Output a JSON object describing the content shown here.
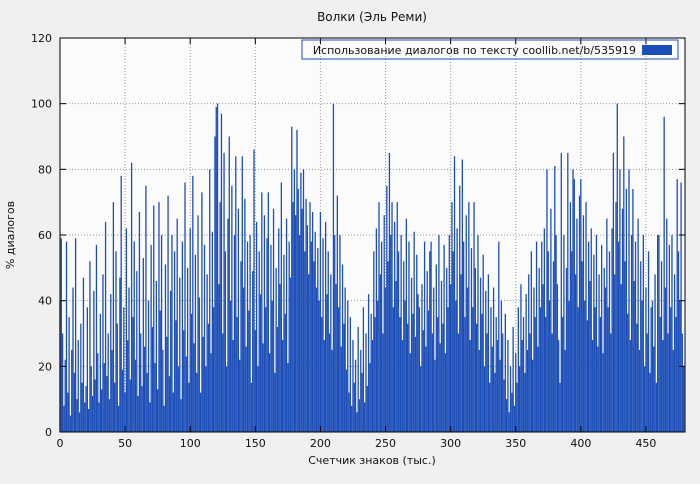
{
  "chart_data": {
    "type": "bar",
    "title": "Волки (Эль Реми)",
    "xlabel": "Счетчик знаков (тыс.)",
    "ylabel": "% диалогов",
    "legend_label": "Использование диалогов по тексту  coollib.net/b/535919",
    "xlim": [
      0,
      480
    ],
    "ylim": [
      0,
      120
    ],
    "x_ticks": [
      0,
      50,
      100,
      150,
      200,
      250,
      300,
      350,
      400,
      450
    ],
    "y_ticks": [
      0,
      20,
      40,
      60,
      80,
      100,
      120
    ],
    "grid": true,
    "legend_position": "top-right",
    "colors": {
      "bar": "#1c4eb8",
      "legend_border": "#1c4eb8"
    },
    "x_start": 0,
    "x_step": 1,
    "values": [
      40,
      59,
      30,
      8,
      22,
      58,
      12,
      35,
      5,
      25,
      44,
      18,
      59,
      10,
      28,
      6,
      33,
      15,
      47,
      9,
      14,
      38,
      7,
      52,
      20,
      11,
      43,
      16,
      57,
      24,
      9,
      36,
      13,
      48,
      21,
      64,
      17,
      30,
      10,
      42,
      25,
      70,
      15,
      55,
      33,
      8,
      47,
      78,
      19,
      38,
      12,
      62,
      28,
      44,
      16,
      82,
      35,
      58,
      22,
      49,
      11,
      67,
      30,
      14,
      53,
      26,
      75,
      18,
      40,
      9,
      57,
      32,
      69,
      21,
      46,
      13,
      70,
      37,
      60,
      25,
      8,
      51,
      29,
      72,
      17,
      43,
      60,
      12,
      55,
      34,
      65,
      20,
      47,
      10,
      58,
      31,
      76,
      23,
      50,
      15,
      62,
      36,
      78,
      27,
      54,
      18,
      66,
      41,
      12,
      73,
      29,
      57,
      20,
      48,
      33,
      80,
      24,
      61,
      38,
      90,
      99,
      100,
      45,
      70,
      97,
      30,
      85,
      55,
      20,
      65,
      90,
      40,
      75,
      28,
      60,
      84,
      35,
      68,
      22,
      52,
      84,
      44,
      71,
      26,
      58,
      37,
      60,
      15,
      49,
      86,
      31,
      64,
      20,
      55,
      42,
      73,
      27,
      66,
      38,
      59,
      73,
      24,
      57,
      40,
      68,
      18,
      50,
      32,
      62,
      45,
      76,
      28,
      54,
      36,
      65,
      21,
      58,
      47,
      93,
      70,
      80,
      66,
      92,
      74,
      60,
      79,
      68,
      80,
      55,
      71,
      63,
      48,
      70,
      58,
      67,
      52,
      61,
      44,
      56,
      40,
      67,
      35,
      59,
      28,
      64,
      42,
      55,
      30,
      48,
      25,
      100,
      60,
      45,
      72,
      38,
      60,
      26,
      51,
      33,
      44,
      19,
      40,
      12,
      35,
      8,
      28,
      15,
      22,
      6,
      32,
      10,
      25,
      18,
      38,
      9,
      30,
      14,
      42,
      21,
      36,
      28,
      55,
      35,
      62,
      40,
      70,
      48,
      58,
      30,
      66,
      44,
      75,
      52,
      85,
      60,
      70,
      38,
      64,
      46,
      70,
      55,
      35,
      60,
      28,
      52,
      40,
      65,
      33,
      58,
      24,
      47,
      36,
      61,
      29,
      54,
      42,
      38,
      20,
      45,
      31,
      58,
      26,
      49,
      37,
      55,
      58,
      30,
      44,
      22,
      51,
      35,
      60,
      27,
      46,
      33,
      57,
      24,
      50,
      38,
      60,
      45,
      70,
      55,
      84,
      40,
      62,
      30,
      75,
      48,
      83,
      58,
      35,
      66,
      44,
      70,
      28,
      56,
      38,
      70,
      50,
      33,
      60,
      25,
      47,
      36,
      54,
      20,
      43,
      30,
      48,
      15,
      38,
      26,
      44,
      18,
      35,
      28,
      58,
      22,
      40,
      30,
      16,
      36,
      10,
      28,
      6,
      20,
      12,
      32,
      8,
      24,
      15,
      38,
      20,
      45,
      28,
      35,
      18,
      42,
      25,
      48,
      30,
      55,
      22,
      44,
      35,
      58,
      26,
      50,
      38,
      58,
      45,
      62,
      35,
      80,
      55,
      40,
      68,
      30,
      52,
      81,
      60,
      45,
      28,
      15,
      85,
      35,
      60,
      25,
      50,
      85,
      40,
      70,
      55,
      80,
      77,
      48,
      65,
      38,
      72,
      77,
      52,
      66,
      40,
      70,
      34,
      58,
      46,
      62,
      28,
      54,
      38,
      60,
      26,
      48,
      35,
      57,
      24,
      50,
      44,
      65,
      38,
      55,
      30,
      62,
      85,
      48,
      70,
      100,
      58,
      80,
      45,
      68,
      90,
      52,
      74,
      36,
      80,
      28,
      60,
      74,
      46,
      58,
      33,
      65,
      25,
      52,
      40,
      60,
      20,
      44,
      30,
      55,
      18,
      38,
      40,
      26,
      48,
      15,
      60,
      60,
      35,
      52,
      28,
      96,
      44,
      65,
      30,
      57,
      38,
      60,
      25,
      48,
      35,
      77,
      55,
      40,
      76,
      30,
      20
    ]
  }
}
